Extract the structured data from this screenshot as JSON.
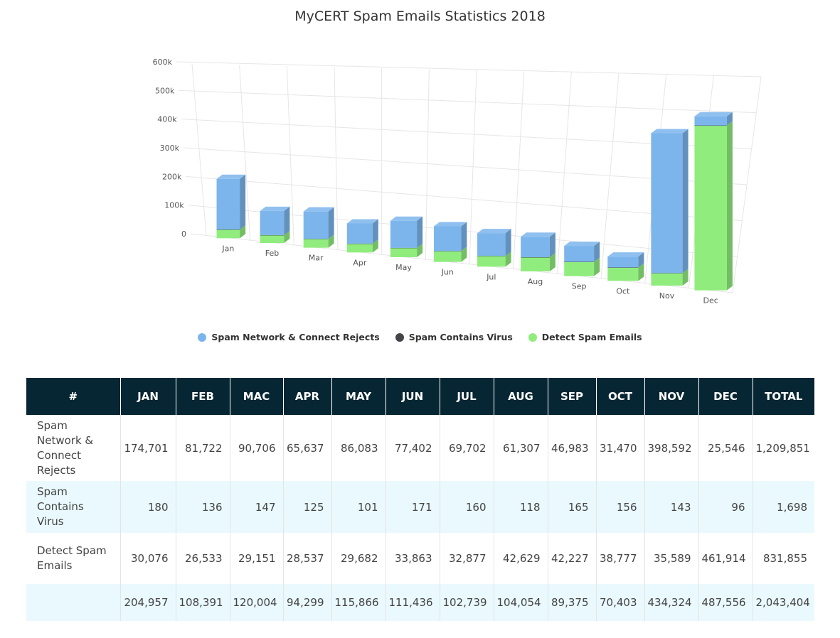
{
  "chart_data": {
    "type": "bar",
    "stacked": true,
    "three_d": true,
    "title": "MyCERT Spam Emails Statistics 2018",
    "categories": [
      "Jan",
      "Feb",
      "Mar",
      "Apr",
      "May",
      "Jun",
      "Jul",
      "Aug",
      "Sep",
      "Oct",
      "Nov",
      "Dec"
    ],
    "series": [
      {
        "name": "Spam Network & Connect Rejects",
        "color": "#7cb5ec",
        "values": [
          174701,
          81722,
          90706,
          65637,
          86083,
          77402,
          69702,
          61307,
          46983,
          31470,
          398592,
          25546
        ]
      },
      {
        "name": "Spam Contains Virus",
        "color": "#434348",
        "values": [
          180,
          136,
          147,
          125,
          101,
          171,
          160,
          118,
          165,
          156,
          143,
          96
        ]
      },
      {
        "name": "Detect Spam Emails",
        "color": "#90ed7d",
        "values": [
          30076,
          26533,
          29151,
          28537,
          29682,
          33863,
          32877,
          42629,
          42227,
          38777,
          35589,
          461914
        ]
      }
    ],
    "y_ticks": [
      "0",
      "100k",
      "200k",
      "300k",
      "400k",
      "500k",
      "600k"
    ],
    "ylim": [
      0,
      600000
    ],
    "grid": true,
    "legend_position": "bottom-center"
  },
  "table": {
    "headers": [
      "#",
      "JAN",
      "FEB",
      "MAC",
      "APR",
      "MAY",
      "JUN",
      "JUL",
      "AUG",
      "SEP",
      "OCT",
      "NOV",
      "DEC",
      "TOTAL"
    ],
    "rows": [
      {
        "label": "Spam Network & Connect Rejects",
        "cells": [
          "174,701",
          "81,722",
          "90,706",
          "65,637",
          "86,083",
          "77,402",
          "69,702",
          "61,307",
          "46,983",
          "31,470",
          "398,592",
          "25,546",
          "1,209,851"
        ]
      },
      {
        "label": "Spam Contains Virus",
        "cells": [
          "180",
          "136",
          "147",
          "125",
          "101",
          "171",
          "160",
          "118",
          "165",
          "156",
          "143",
          "96",
          "1,698"
        ]
      },
      {
        "label": "Detect Spam Emails",
        "cells": [
          "30,076",
          "26,533",
          "29,151",
          "28,537",
          "29,682",
          "33,863",
          "32,877",
          "42,629",
          "42,227",
          "38,777",
          "35,589",
          "461,914",
          "831,855"
        ]
      },
      {
        "label": "",
        "cells": [
          "204,957",
          "108,391",
          "120,004",
          "94,299",
          "115,866",
          "111,436",
          "102,739",
          "104,054",
          "89,375",
          "70,403",
          "434,324",
          "487,556",
          "2,043,404"
        ]
      }
    ]
  }
}
